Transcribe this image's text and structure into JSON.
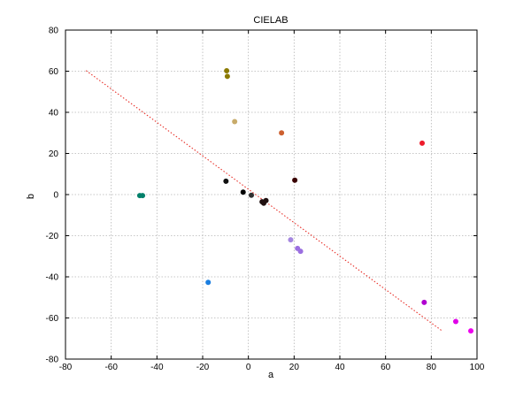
{
  "chart_data": {
    "type": "scatter",
    "title": "CIELAB",
    "xlabel": "a",
    "ylabel": "b",
    "xlim": [
      -80,
      100
    ],
    "ylim": [
      -80,
      80
    ],
    "xticks": [
      -80,
      -60,
      -40,
      -20,
      0,
      20,
      40,
      60,
      80,
      100
    ],
    "yticks": [
      -80,
      -60,
      -40,
      -20,
      0,
      20,
      40,
      60,
      80
    ],
    "grid": true,
    "points": [
      {
        "x": -9.5,
        "y": 60.2,
        "color": "#8b7a00"
      },
      {
        "x": -9.2,
        "y": 57.5,
        "color": "#8b7a00"
      },
      {
        "x": -6.0,
        "y": 35.5,
        "color": "#c8ab6a"
      },
      {
        "x": 14.5,
        "y": 30.0,
        "color": "#cd6030"
      },
      {
        "x": 76.0,
        "y": 25.0,
        "color": "#ee1c2b"
      },
      {
        "x": -47.5,
        "y": -0.5,
        "color": "#00806a"
      },
      {
        "x": -46.3,
        "y": -0.5,
        "color": "#00806a"
      },
      {
        "x": -9.8,
        "y": 6.5,
        "color": "#101010"
      },
      {
        "x": 20.3,
        "y": 7.0,
        "color": "#3a0000"
      },
      {
        "x": -2.3,
        "y": 1.2,
        "color": "#000000"
      },
      {
        "x": 1.3,
        "y": -0.3,
        "color": "#303030"
      },
      {
        "x": 6.0,
        "y": -3.5,
        "color": "#201010"
      },
      {
        "x": 6.7,
        "y": -4.2,
        "color": "#201010"
      },
      {
        "x": 7.7,
        "y": -2.9,
        "color": "#201010"
      },
      {
        "x": 18.5,
        "y": -22.0,
        "color": "#a587e0"
      },
      {
        "x": 21.5,
        "y": -26.2,
        "color": "#9b6fe0"
      },
      {
        "x": 22.8,
        "y": -27.6,
        "color": "#9b6fe0"
      },
      {
        "x": -17.6,
        "y": -42.7,
        "color": "#1a7ee0"
      },
      {
        "x": 76.9,
        "y": -52.4,
        "color": "#b000d0"
      },
      {
        "x": 90.7,
        "y": -61.7,
        "color": "#e000e8"
      },
      {
        "x": 97.3,
        "y": -66.3,
        "color": "#ee00ee"
      }
    ],
    "trendline": {
      "x": [
        -71,
        85
      ],
      "y": [
        60.3,
        -66.5
      ],
      "color": "#e8312a",
      "style": "dotted"
    }
  }
}
